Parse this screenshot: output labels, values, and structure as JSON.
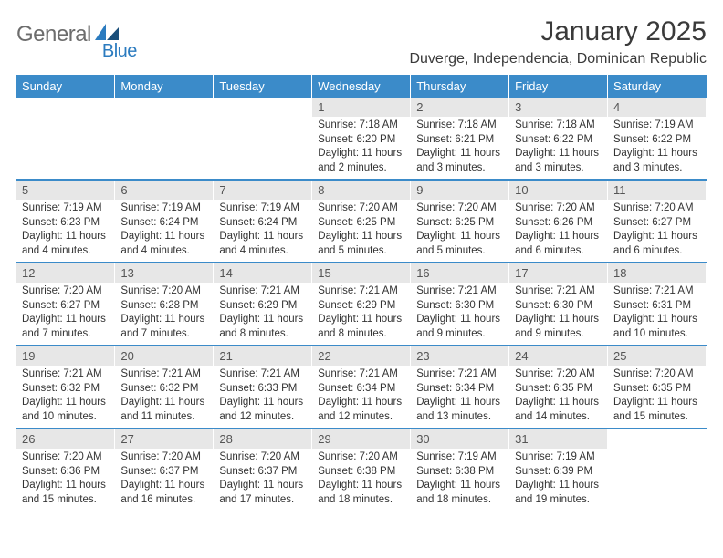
{
  "logo": {
    "text_gray": "General",
    "text_blue": "Blue"
  },
  "title": "January 2025",
  "location": "Duverge, Independencia, Dominican Republic",
  "colors": {
    "header_bg": "#3b8bc9",
    "header_text": "#ffffff",
    "daynum_bg": "#e7e7e7",
    "row_border": "#3b8bc9",
    "logo_gray": "#6d6d6d",
    "logo_blue": "#2b7bbf"
  },
  "weekdays": [
    "Sunday",
    "Monday",
    "Tuesday",
    "Wednesday",
    "Thursday",
    "Friday",
    "Saturday"
  ],
  "weeks": [
    [
      null,
      null,
      null,
      {
        "n": "1",
        "sunrise": "7:18 AM",
        "sunset": "6:20 PM",
        "daylight": "11 hours and 2 minutes."
      },
      {
        "n": "2",
        "sunrise": "7:18 AM",
        "sunset": "6:21 PM",
        "daylight": "11 hours and 3 minutes."
      },
      {
        "n": "3",
        "sunrise": "7:18 AM",
        "sunset": "6:22 PM",
        "daylight": "11 hours and 3 minutes."
      },
      {
        "n": "4",
        "sunrise": "7:19 AM",
        "sunset": "6:22 PM",
        "daylight": "11 hours and 3 minutes."
      }
    ],
    [
      {
        "n": "5",
        "sunrise": "7:19 AM",
        "sunset": "6:23 PM",
        "daylight": "11 hours and 4 minutes."
      },
      {
        "n": "6",
        "sunrise": "7:19 AM",
        "sunset": "6:24 PM",
        "daylight": "11 hours and 4 minutes."
      },
      {
        "n": "7",
        "sunrise": "7:19 AM",
        "sunset": "6:24 PM",
        "daylight": "11 hours and 4 minutes."
      },
      {
        "n": "8",
        "sunrise": "7:20 AM",
        "sunset": "6:25 PM",
        "daylight": "11 hours and 5 minutes."
      },
      {
        "n": "9",
        "sunrise": "7:20 AM",
        "sunset": "6:25 PM",
        "daylight": "11 hours and 5 minutes."
      },
      {
        "n": "10",
        "sunrise": "7:20 AM",
        "sunset": "6:26 PM",
        "daylight": "11 hours and 6 minutes."
      },
      {
        "n": "11",
        "sunrise": "7:20 AM",
        "sunset": "6:27 PM",
        "daylight": "11 hours and 6 minutes."
      }
    ],
    [
      {
        "n": "12",
        "sunrise": "7:20 AM",
        "sunset": "6:27 PM",
        "daylight": "11 hours and 7 minutes."
      },
      {
        "n": "13",
        "sunrise": "7:20 AM",
        "sunset": "6:28 PM",
        "daylight": "11 hours and 7 minutes."
      },
      {
        "n": "14",
        "sunrise": "7:21 AM",
        "sunset": "6:29 PM",
        "daylight": "11 hours and 8 minutes."
      },
      {
        "n": "15",
        "sunrise": "7:21 AM",
        "sunset": "6:29 PM",
        "daylight": "11 hours and 8 minutes."
      },
      {
        "n": "16",
        "sunrise": "7:21 AM",
        "sunset": "6:30 PM",
        "daylight": "11 hours and 9 minutes."
      },
      {
        "n": "17",
        "sunrise": "7:21 AM",
        "sunset": "6:30 PM",
        "daylight": "11 hours and 9 minutes."
      },
      {
        "n": "18",
        "sunrise": "7:21 AM",
        "sunset": "6:31 PM",
        "daylight": "11 hours and 10 minutes."
      }
    ],
    [
      {
        "n": "19",
        "sunrise": "7:21 AM",
        "sunset": "6:32 PM",
        "daylight": "11 hours and 10 minutes."
      },
      {
        "n": "20",
        "sunrise": "7:21 AM",
        "sunset": "6:32 PM",
        "daylight": "11 hours and 11 minutes."
      },
      {
        "n": "21",
        "sunrise": "7:21 AM",
        "sunset": "6:33 PM",
        "daylight": "11 hours and 12 minutes."
      },
      {
        "n": "22",
        "sunrise": "7:21 AM",
        "sunset": "6:34 PM",
        "daylight": "11 hours and 12 minutes."
      },
      {
        "n": "23",
        "sunrise": "7:21 AM",
        "sunset": "6:34 PM",
        "daylight": "11 hours and 13 minutes."
      },
      {
        "n": "24",
        "sunrise": "7:20 AM",
        "sunset": "6:35 PM",
        "daylight": "11 hours and 14 minutes."
      },
      {
        "n": "25",
        "sunrise": "7:20 AM",
        "sunset": "6:35 PM",
        "daylight": "11 hours and 15 minutes."
      }
    ],
    [
      {
        "n": "26",
        "sunrise": "7:20 AM",
        "sunset": "6:36 PM",
        "daylight": "11 hours and 15 minutes."
      },
      {
        "n": "27",
        "sunrise": "7:20 AM",
        "sunset": "6:37 PM",
        "daylight": "11 hours and 16 minutes."
      },
      {
        "n": "28",
        "sunrise": "7:20 AM",
        "sunset": "6:37 PM",
        "daylight": "11 hours and 17 minutes."
      },
      {
        "n": "29",
        "sunrise": "7:20 AM",
        "sunset": "6:38 PM",
        "daylight": "11 hours and 18 minutes."
      },
      {
        "n": "30",
        "sunrise": "7:19 AM",
        "sunset": "6:38 PM",
        "daylight": "11 hours and 18 minutes."
      },
      {
        "n": "31",
        "sunrise": "7:19 AM",
        "sunset": "6:39 PM",
        "daylight": "11 hours and 19 minutes."
      },
      null
    ]
  ],
  "labels": {
    "sunrise": "Sunrise: ",
    "sunset": "Sunset: ",
    "daylight": "Daylight: "
  }
}
